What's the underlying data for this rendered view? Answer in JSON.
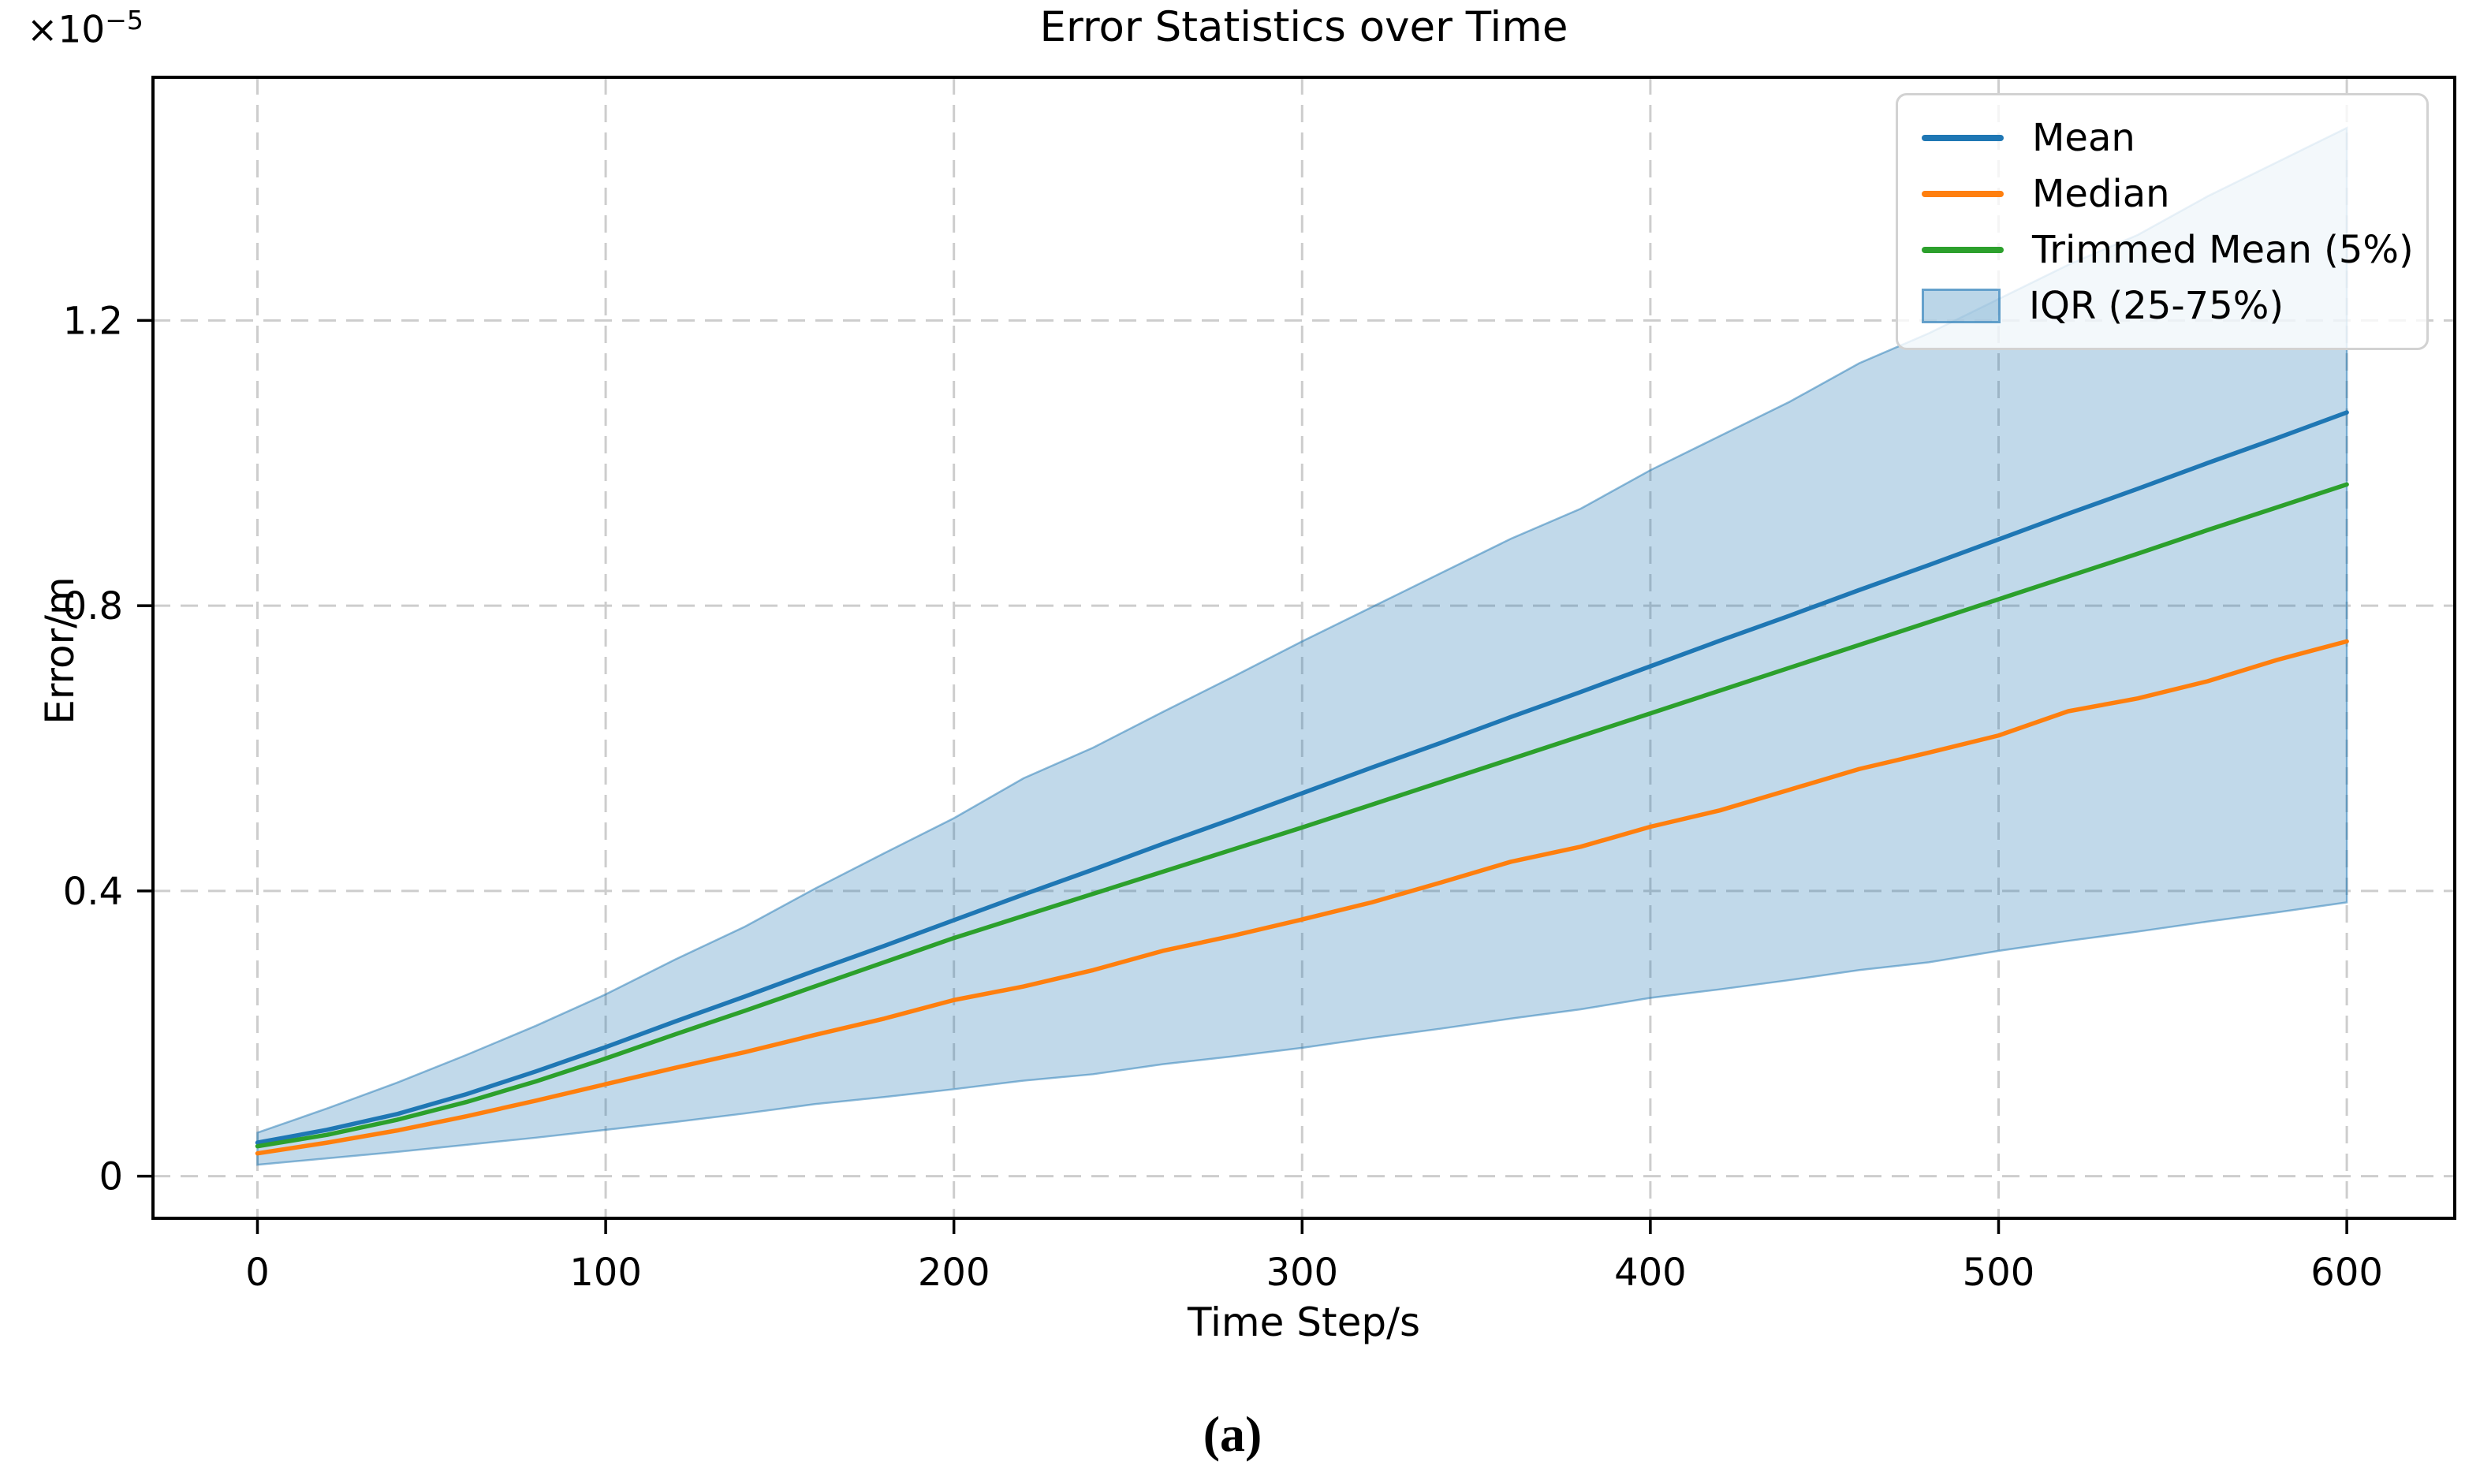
{
  "title": "Error Statistics over Time",
  "axis": {
    "xlabel": "Time Step/s",
    "ylabel": "Error/m",
    "offset_base": "×10",
    "offset_exp": "−5"
  },
  "caption": "(a)",
  "colors": {
    "mean": "#1f77b4",
    "median": "#ff7f0e",
    "trimmed": "#2ca02c",
    "band_fill": "rgba(31,119,180,0.28)",
    "band_edge": "rgba(31,119,180,0.5)",
    "grid": "#cdcdcd",
    "spine": "#000000",
    "legend_border": "#d2d2d2",
    "legend_bg": "rgba(255,255,255,0.8)"
  },
  "legend": {
    "items": [
      {
        "label": "Mean",
        "type": "line",
        "color": "#1f77b4"
      },
      {
        "label": "Median",
        "type": "line",
        "color": "#ff7f0e"
      },
      {
        "label": "Trimmed Mean (5%)",
        "type": "line",
        "color": "#2ca02c"
      },
      {
        "label": "IQR (25-75%)",
        "type": "patch",
        "color": "#1f77b4"
      }
    ]
  },
  "chart_data": {
    "type": "line",
    "title": "Error Statistics over Time",
    "xlabel": "Time Step/s",
    "ylabel": "Error/m",
    "y_unit_multiplier": "1e-5",
    "xlim": [
      -30,
      631
    ],
    "ylim": [
      -0.059,
      1.541
    ],
    "x_ticks": [
      0,
      100,
      200,
      300,
      400,
      500,
      600
    ],
    "x_tick_labels": [
      "0",
      "100",
      "200",
      "300",
      "400",
      "500",
      "600"
    ],
    "y_ticks": [
      0,
      0.4,
      0.8,
      1.2
    ],
    "y_tick_labels": [
      "0",
      "0.4",
      "0.8",
      "1.2"
    ],
    "grid": true,
    "grid_style": "dashed",
    "legend_position": "upper right",
    "x": [
      0,
      20,
      40,
      60,
      80,
      100,
      120,
      140,
      160,
      180,
      200,
      220,
      240,
      260,
      280,
      300,
      320,
      340,
      360,
      380,
      400,
      420,
      440,
      460,
      480,
      500,
      520,
      540,
      560,
      580,
      600
    ],
    "series": [
      {
        "name": "Mean",
        "color": "#1f77b4",
        "values": [
          0.047,
          0.065,
          0.087,
          0.115,
          0.147,
          0.181,
          0.217,
          0.252,
          0.288,
          0.323,
          0.359,
          0.395,
          0.43,
          0.466,
          0.501,
          0.537,
          0.573,
          0.608,
          0.644,
          0.679,
          0.715,
          0.751,
          0.786,
          0.822,
          0.857,
          0.893,
          0.929,
          0.964,
          1.0,
          1.035,
          1.071
        ]
      },
      {
        "name": "Median",
        "color": "#ff7f0e",
        "values": [
          0.032,
          0.047,
          0.064,
          0.084,
          0.106,
          0.129,
          0.152,
          0.174,
          0.198,
          0.221,
          0.247,
          0.266,
          0.289,
          0.316,
          0.337,
          0.36,
          0.384,
          0.412,
          0.441,
          0.462,
          0.49,
          0.513,
          0.542,
          0.571,
          0.594,
          0.618,
          0.652,
          0.67,
          0.694,
          0.724,
          0.75
        ]
      },
      {
        "name": "Trimmed Mean (5%)",
        "color": "#2ca02c",
        "values": [
          0.042,
          0.058,
          0.079,
          0.104,
          0.133,
          0.165,
          0.199,
          0.232,
          0.266,
          0.3,
          0.334,
          0.365,
          0.396,
          0.427,
          0.458,
          0.489,
          0.521,
          0.553,
          0.585,
          0.617,
          0.649,
          0.681,
          0.713,
          0.745,
          0.777,
          0.809,
          0.841,
          0.873,
          0.906,
          0.938,
          0.97
        ]
      }
    ],
    "band": {
      "name": "IQR (25-75%)",
      "color": "#1f77b4",
      "fill_opacity": 0.28,
      "upper": [
        0.061,
        0.095,
        0.131,
        0.17,
        0.211,
        0.255,
        0.304,
        0.35,
        0.403,
        0.453,
        0.502,
        0.558,
        0.601,
        0.651,
        0.7,
        0.75,
        0.798,
        0.846,
        0.894,
        0.936,
        0.99,
        1.038,
        1.086,
        1.14,
        1.182,
        1.23,
        1.278,
        1.32,
        1.374,
        1.422,
        1.47
      ],
      "lower": [
        0.016,
        0.025,
        0.034,
        0.044,
        0.054,
        0.065,
        0.076,
        0.088,
        0.101,
        0.111,
        0.122,
        0.134,
        0.143,
        0.157,
        0.168,
        0.18,
        0.194,
        0.207,
        0.221,
        0.234,
        0.25,
        0.262,
        0.275,
        0.289,
        0.3,
        0.316,
        0.33,
        0.343,
        0.357,
        0.37,
        0.384
      ]
    }
  }
}
